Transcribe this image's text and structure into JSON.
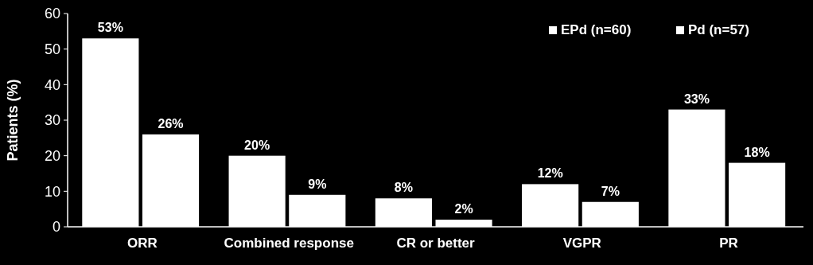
{
  "chart_data": {
    "type": "bar",
    "ylabel": "Patients (%)",
    "categories": [
      "ORR",
      "Combined response",
      "CR or better",
      "VGPR",
      "PR"
    ],
    "series": [
      {
        "name": "EPd (n=60)",
        "color": "#ffffff",
        "values": [
          53,
          20,
          8,
          12,
          33
        ],
        "value_labels": [
          "53%",
          "20%",
          "8%",
          "12%",
          "33%"
        ]
      },
      {
        "name": "Pd (n=57)",
        "color": "#ffffff",
        "values": [
          26,
          9,
          2,
          7,
          18
        ],
        "value_labels": [
          "26%",
          "9%",
          "2%",
          "7%",
          "18%"
        ]
      }
    ],
    "ylim": [
      0,
      60
    ],
    "yticks": [
      0,
      10,
      20,
      30,
      40,
      50,
      60
    ],
    "grid": false,
    "legend": "top right"
  }
}
